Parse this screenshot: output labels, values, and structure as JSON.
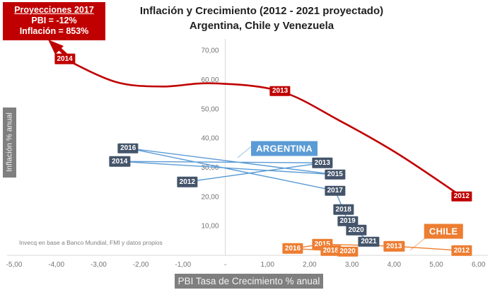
{
  "title": {
    "line1": "Inflación y Crecimiento (2012 - 2021 proyectado)",
    "line2": "Argentina, Chile y Venezuela"
  },
  "projection_callout": {
    "heading": "Proyecciones 2017",
    "pbi": "PBI = -12%",
    "inflacion": "Inflación = 853%",
    "bg_color": "#c00000",
    "points_to_year": "2014"
  },
  "source_note": "Invecq en base a Banco Mundial, FMI y datos propios",
  "chart_data": {
    "type": "line",
    "title": "Inflación y Crecimiento (2012 - 2021 proyectado) Argentina, Chile y Venezuela",
    "xlabel": "PBI Tasa de Crecimiento % anual",
    "ylabel": "Inflación % anual",
    "xlim": [
      -5,
      6
    ],
    "ylim": [
      0,
      70
    ],
    "grid": false,
    "legend_position": "in-plot callout boxes",
    "colors": {
      "axis_line": "#d9d9d9",
      "tick_text": "#737373",
      "axis_title_bg": "#7f7f7f"
    },
    "x_ticks": [
      {
        "value": -5,
        "label": "-5,00"
      },
      {
        "value": -4,
        "label": "-4,00"
      },
      {
        "value": -3,
        "label": "-3,00"
      },
      {
        "value": -2,
        "label": "-2,00"
      },
      {
        "value": -1,
        "label": "-1,00"
      },
      {
        "value": 0,
        "label": "-"
      },
      {
        "value": 1,
        "label": "1,00"
      },
      {
        "value": 2,
        "label": "2,00"
      },
      {
        "value": 3,
        "label": "3,00"
      },
      {
        "value": 4,
        "label": "4,00"
      },
      {
        "value": 5,
        "label": "5,00"
      },
      {
        "value": 6,
        "label": "6,00"
      }
    ],
    "y_ticks": [
      {
        "value": 10,
        "label": "10,00"
      },
      {
        "value": 20,
        "label": "20,00"
      },
      {
        "value": 30,
        "label": "30,00"
      },
      {
        "value": 40,
        "label": "40,00"
      },
      {
        "value": 50,
        "label": "50,00"
      },
      {
        "value": 60,
        "label": "60,00"
      },
      {
        "value": 70,
        "label": "70,00"
      }
    ],
    "series": [
      {
        "name": "Venezuela",
        "line_color": "#c00000",
        "label_bg": "#c00000",
        "line_width": 2.6,
        "smooth": true,
        "points": [
          {
            "year": "2012",
            "x": 5.6,
            "y": 20
          },
          {
            "year": "2013",
            "x": 1.3,
            "y": 56
          },
          {
            "year": "2014",
            "x": -3.8,
            "y": 67
          }
        ],
        "curve_shape": [
          [
            -3.8,
            67
          ],
          [
            -2.6,
            59.2
          ],
          [
            -1.5,
            57.6
          ],
          [
            -0.3,
            58.7
          ],
          [
            1.3,
            56
          ],
          [
            2.7,
            46
          ],
          [
            4.1,
            34.5
          ],
          [
            5.6,
            20
          ]
        ],
        "callout": null
      },
      {
        "name": "Argentina",
        "line_color": "#5b9bd5",
        "label_bg": "#44546a",
        "line_width": 1.4,
        "smooth": false,
        "points": [
          {
            "year": "2012",
            "x": -0.9,
            "y": 25
          },
          {
            "year": "2013",
            "x": 2.3,
            "y": 31.5
          },
          {
            "year": "2014",
            "x": -2.5,
            "y": 32
          },
          {
            "year": "2015",
            "x": 2.6,
            "y": 27.5
          },
          {
            "year": "2016",
            "x": -2.3,
            "y": 36.5
          },
          {
            "year": "2017",
            "x": 2.6,
            "y": 22
          },
          {
            "year": "2018",
            "x": 2.8,
            "y": 15.5
          },
          {
            "year": "2019",
            "x": 2.9,
            "y": 11.5
          },
          {
            "year": "2020",
            "x": 3.1,
            "y": 8.5
          },
          {
            "year": "2021",
            "x": 3.4,
            "y": 4.5
          }
        ],
        "callout": {
          "label": "ARGENTINA",
          "x": 1.4,
          "y": 36.4,
          "bg": "#5b9bd5"
        }
      },
      {
        "name": "Chile",
        "line_color": "#ed7d31",
        "label_bg": "#ed7d31",
        "line_width": 1.4,
        "smooth": false,
        "points": [
          {
            "year": "2012",
            "x": 5.6,
            "y": 1.5
          },
          {
            "year": "2013",
            "x": 4.0,
            "y": 3.0
          },
          {
            "year": "2015",
            "x": 2.3,
            "y": 3.7
          },
          {
            "year": "2016",
            "x": 1.6,
            "y": 2.2
          },
          {
            "year": "2018",
            "x": 2.5,
            "y": 1.5
          },
          {
            "year": "2020",
            "x": 2.9,
            "y": 1.2
          }
        ],
        "callout": {
          "label": "CHILE",
          "x": 5.17,
          "y": 8.2,
          "bg": "#ed7d31"
        }
      }
    ]
  }
}
